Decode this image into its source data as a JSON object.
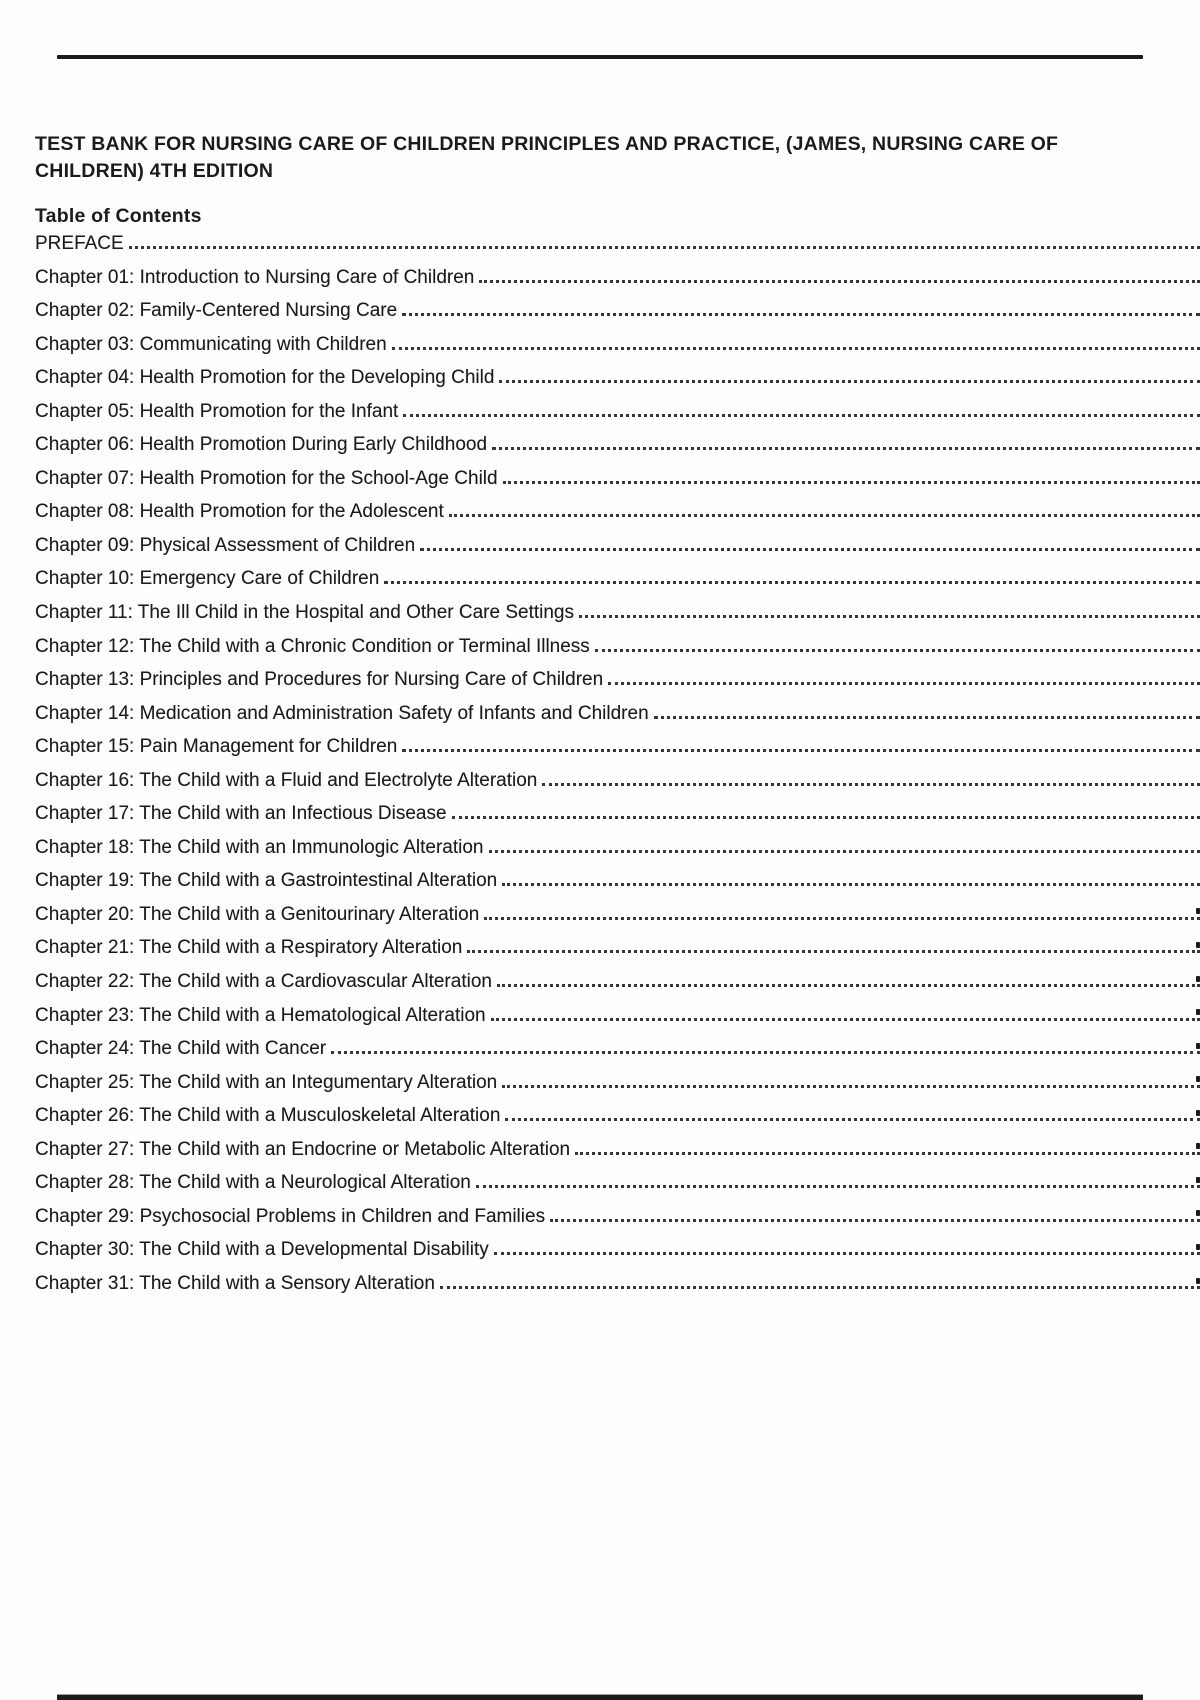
{
  "colors": {
    "bg": "#fefefe",
    "text": "#1b1b1b",
    "rule": "#1b1b1b",
    "leader": "#373737"
  },
  "document": {
    "title_lines": [
      "TEST BANK FOR NURSING CARE OF CHILDREN PRINCIPLES AND PRACTICE, (JAMES, NURSING CARE OF",
      "CHILDREN) 4TH EDITION"
    ],
    "toc_heading": "Table of Contents",
    "entries": [
      {
        "label": "PREFACE",
        "page_number_fragment": false
      },
      {
        "label": "Chapter 01: Introduction to Nursing Care of Children",
        "page_number_fragment": false
      },
      {
        "label": "Chapter 02: Family-Centered Nursing Care",
        "page_number_fragment": false
      },
      {
        "label": "Chapter 03: Communicating with Children",
        "page_number_fragment": false
      },
      {
        "label": "Chapter 04: Health Promotion for the Developing Child",
        "page_number_fragment": false
      },
      {
        "label": "Chapter 05: Health Promotion for the Infant",
        "page_number_fragment": false
      },
      {
        "label": "Chapter 06: Health Promotion During Early Childhood",
        "page_number_fragment": false
      },
      {
        "label": "Chapter 07: Health Promotion for the School-Age Child",
        "page_number_fragment": false
      },
      {
        "label": "Chapter 08: Health Promotion for the Adolescent",
        "page_number_fragment": false
      },
      {
        "label": "Chapter 09: Physical Assessment of Children",
        "page_number_fragment": false
      },
      {
        "label": "Chapter 10: Emergency Care of Children",
        "page_number_fragment": false
      },
      {
        "label": "Chapter 11: The Ill Child in the Hospital and Other Care Settings",
        "page_number_fragment": false
      },
      {
        "label": "Chapter 12: The Child with a Chronic Condition or Terminal Illness",
        "page_number_fragment": false
      },
      {
        "label": "Chapter 13: Principles and Procedures for Nursing Care of Children",
        "page_number_fragment": false
      },
      {
        "label": "Chapter 14: Medication and Administration Safety of Infants and Children",
        "page_number_fragment": false
      },
      {
        "label": "Chapter 15: Pain Management for Children",
        "page_number_fragment": false
      },
      {
        "label": "Chapter 16: The Child with a Fluid and Electrolyte Alteration",
        "page_number_fragment": false
      },
      {
        "label": "Chapter 17: The Child with an Infectious Disease",
        "page_number_fragment": false
      },
      {
        "label": "Chapter 18: The Child with an Immunologic Alteration",
        "page_number_fragment": false
      },
      {
        "label": "Chapter 19: The Child with a Gastrointestinal Alteration",
        "page_number_fragment": false
      },
      {
        "label": "Chapter 20: The Child with a Genitourinary Alteration",
        "page_number_fragment": true
      },
      {
        "label": "Chapter 21: The Child with a Respiratory Alteration",
        "page_number_fragment": true
      },
      {
        "label": "Chapter 22: The Child with a Cardiovascular Alteration",
        "page_number_fragment": true
      },
      {
        "label": "Chapter 23: The Child with a Hematological Alteration",
        "page_number_fragment": true
      },
      {
        "label": "Chapter 24: The Child with Cancer",
        "page_number_fragment": true
      },
      {
        "label": "Chapter 25: The Child with an Integumentary Alteration",
        "page_number_fragment": true
      },
      {
        "label": "Chapter 26: The Child with a Musculoskeletal Alteration",
        "page_number_fragment": true
      },
      {
        "label": "Chapter 27: The Child with an Endocrine or Metabolic Alteration",
        "page_number_fragment": true
      },
      {
        "label": "Chapter 28: The Child with a Neurological Alteration",
        "page_number_fragment": true
      },
      {
        "label": "Chapter 29: Psychosocial Problems in Children and Families",
        "page_number_fragment": true
      },
      {
        "label": "Chapter 30: The Child with a Developmental Disability",
        "page_number_fragment": true
      },
      {
        "label": "Chapter 31: The Child with a Sensory Alteration",
        "page_number_fragment": true
      }
    ]
  }
}
